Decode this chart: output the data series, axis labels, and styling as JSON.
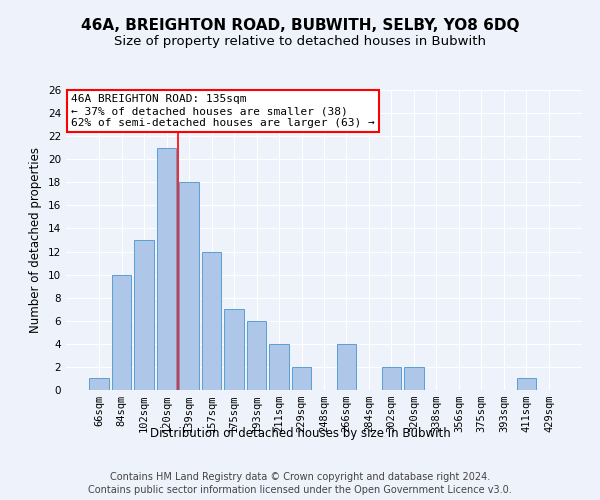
{
  "title": "46A, BREIGHTON ROAD, BUBWITH, SELBY, YO8 6DQ",
  "subtitle": "Size of property relative to detached houses in Bubwith",
  "xlabel": "Distribution of detached houses by size in Bubwith",
  "ylabel": "Number of detached properties",
  "categories": [
    "66sqm",
    "84sqm",
    "102sqm",
    "120sqm",
    "139sqm",
    "157sqm",
    "175sqm",
    "193sqm",
    "211sqm",
    "229sqm",
    "248sqm",
    "266sqm",
    "284sqm",
    "302sqm",
    "320sqm",
    "338sqm",
    "356sqm",
    "375sqm",
    "393sqm",
    "411sqm",
    "429sqm"
  ],
  "values": [
    1,
    10,
    13,
    21,
    18,
    12,
    7,
    6,
    4,
    2,
    0,
    4,
    0,
    2,
    2,
    0,
    0,
    0,
    0,
    1,
    0
  ],
  "bar_color": "#aec6e8",
  "bar_edge_color": "#5a9fd4",
  "red_line_x": 3.5,
  "annotation_text": "46A BREIGHTON ROAD: 135sqm\n← 37% of detached houses are smaller (38)\n62% of semi-detached houses are larger (63) →",
  "annotation_box_color": "white",
  "annotation_box_edge_color": "red",
  "ylim": [
    0,
    26
  ],
  "yticks": [
    0,
    2,
    4,
    6,
    8,
    10,
    12,
    14,
    16,
    18,
    20,
    22,
    24,
    26
  ],
  "footer_line1": "Contains HM Land Registry data © Crown copyright and database right 2024.",
  "footer_line2": "Contains public sector information licensed under the Open Government Licence v3.0.",
  "bg_color": "#eef2fb",
  "plot_bg_color": "#eef2fb",
  "grid_color": "white",
  "title_fontsize": 11,
  "subtitle_fontsize": 9.5,
  "tick_fontsize": 7.5,
  "ylabel_fontsize": 8.5,
  "xlabel_fontsize": 8.5,
  "footer_fontsize": 7,
  "annotation_fontsize": 8
}
